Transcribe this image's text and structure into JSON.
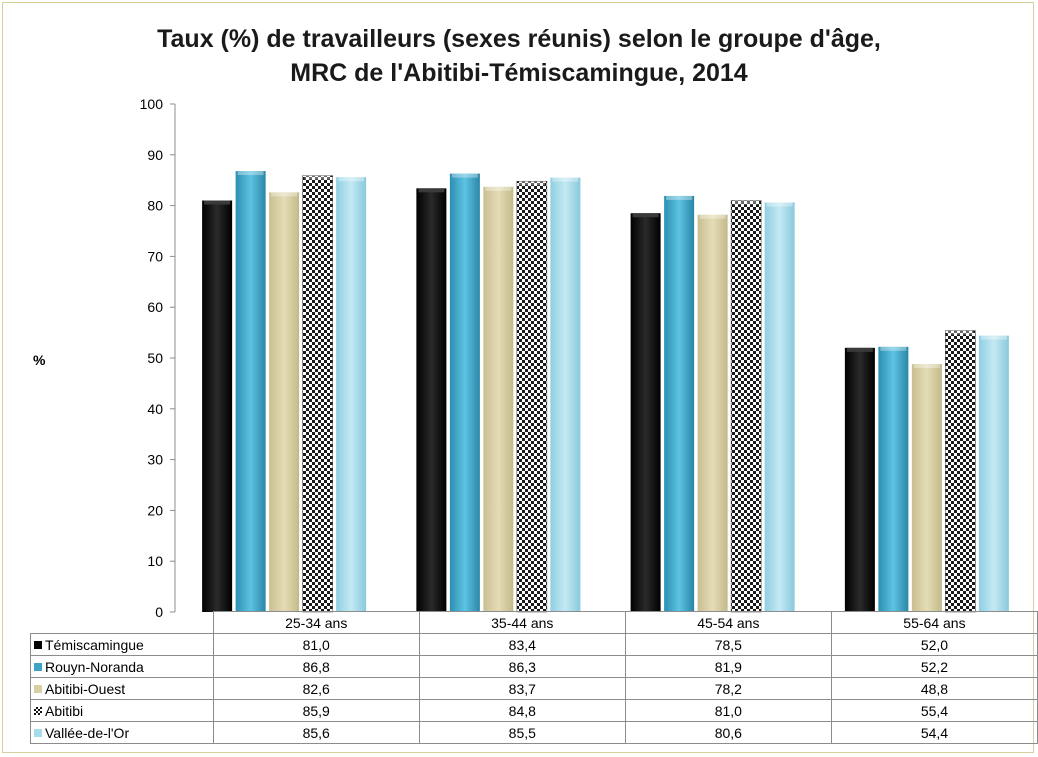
{
  "chart_data": {
    "type": "bar",
    "title_line1": "Taux (%) de travailleurs (sexes réunis) selon le groupe d'âge,",
    "title_line2": "MRC de l'Abitibi-Témiscamingue, 2014",
    "ylabel": "%",
    "xlabel": "",
    "ylim": [
      0,
      100
    ],
    "yticks": [
      "0",
      "10",
      "20",
      "30",
      "40",
      "50",
      "60",
      "70",
      "80",
      "90",
      "100"
    ],
    "categories": [
      "25-34 ans",
      "35-44 ans",
      "45-54 ans",
      "55-64 ans"
    ],
    "series": [
      {
        "name": "Témiscamingue",
        "values": [
          81.0,
          83.4,
          78.5,
          52.0
        ],
        "labels": [
          "81,0",
          "83,4",
          "78,5",
          "52,0"
        ],
        "color": "#000000"
      },
      {
        "name": "Rouyn-Noranda",
        "values": [
          86.8,
          86.3,
          81.9,
          52.2
        ],
        "labels": [
          "86,8",
          "86,3",
          "81,9",
          "52,2"
        ],
        "color": "#3ea4c6"
      },
      {
        "name": "Abitibi-Ouest",
        "values": [
          82.6,
          83.7,
          78.2,
          48.8
        ],
        "labels": [
          "82,6",
          "83,7",
          "78,2",
          "48,8"
        ],
        "color": "#d8cfa4"
      },
      {
        "name": "Abitibi",
        "values": [
          85.9,
          84.8,
          81.0,
          55.4
        ],
        "labels": [
          "85,9",
          "84,8",
          "81,0",
          "55,4"
        ],
        "color": "#2a2a2a"
      },
      {
        "name": "Vallée-de-l'Or",
        "values": [
          85.6,
          85.5,
          80.6,
          54.4
        ],
        "labels": [
          "85,6",
          "85,5",
          "80,6",
          "54,4"
        ],
        "color": "#a9dceb"
      }
    ],
    "grid": false,
    "legend": "data-table"
  }
}
